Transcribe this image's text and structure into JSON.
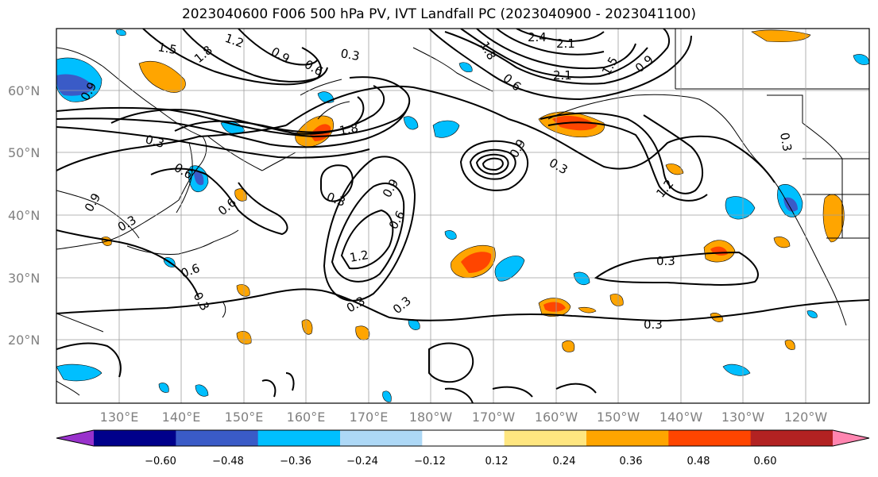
{
  "title": "2023040600 F006 500 hPa PV, IVT Landfall PC (2023040900 - 2023041100)",
  "lat_labels": [
    "60°N",
    "50°N",
    "40°N",
    "30°N",
    "20°N"
  ],
  "lon_labels": [
    "130°E",
    "140°E",
    "150°E",
    "160°E",
    "170°E",
    "180°W",
    "170°W",
    "160°W",
    "150°W",
    "140°W",
    "130°W",
    "120°W"
  ],
  "colorbar": {
    "colors": [
      "#9932CC",
      "#00008B",
      "#3A5BC7",
      "#00BFFF",
      "#ADD8F6",
      "#FFFFFF",
      "#FFE680",
      "#FFA500",
      "#FF4500",
      "#B22222",
      "#FF85B0"
    ],
    "tick_labels": [
      "−0.60",
      "−0.48",
      "−0.36",
      "−0.24",
      "−0.12",
      "0.12",
      "0.24",
      "0.36",
      "0.48",
      "0.60"
    ]
  },
  "contour_labels": [
    "1.5",
    "1.2",
    "0.9",
    "0.6",
    "0.3",
    "1.8",
    "0.3",
    "0.6",
    "0.9",
    "0.3",
    "0.6",
    "0.3",
    "0.9",
    "0.6",
    "1.2",
    "0.3",
    "0.3",
    "1.2",
    "0.3",
    "0.3",
    "0.3",
    "0.9",
    "1.5",
    "1.8",
    "2.1",
    "2.4",
    "2.1",
    "0.3",
    "0.9",
    "0.6",
    "0.3",
    "0.6",
    "1.8",
    "0.9"
  ],
  "colors": {
    "positive": "#FFA500",
    "strong_positive": "#FF4500",
    "negative": "#00BFFF",
    "strong_negative": "#3A5BC7",
    "contour": "#000000",
    "grid": "#9E9E9E",
    "axis_label": "#808080"
  }
}
